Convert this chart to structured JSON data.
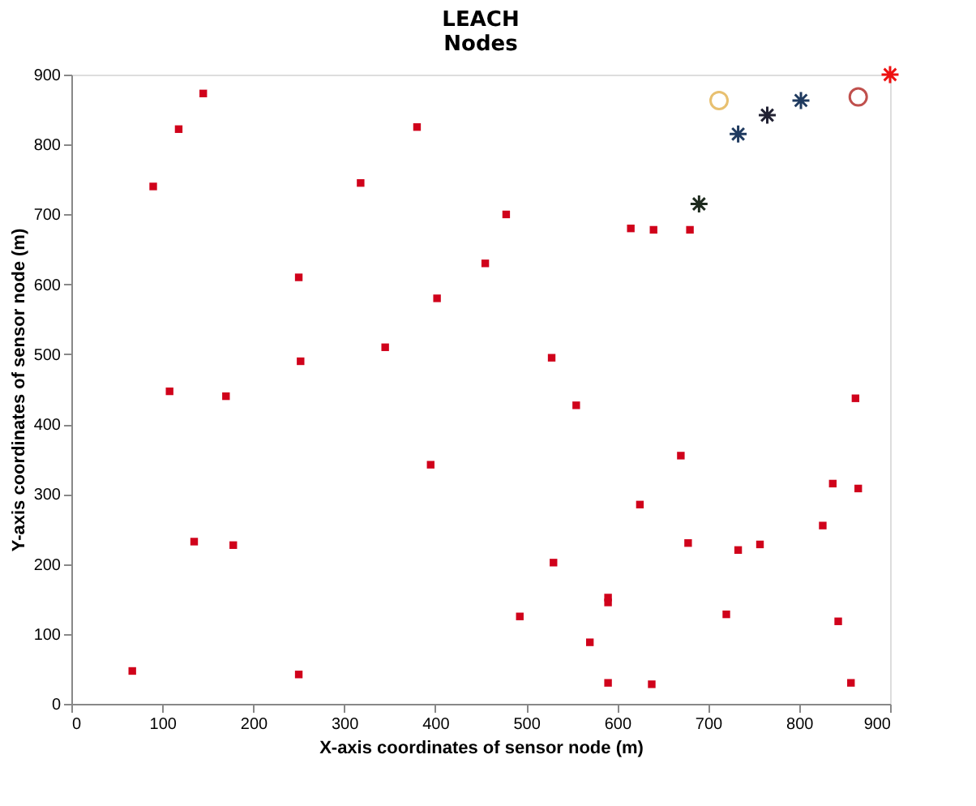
{
  "chart_data": {
    "type": "scatter",
    "title": "LEACH",
    "subtitle": "Nodes",
    "xlabel": "X-axis coordinates of sensor node (m)",
    "ylabel": "Y-axis coordinates of sensor node (m)",
    "xlim": [
      0,
      900
    ],
    "ylim": [
      0,
      900
    ],
    "xticks": [
      0,
      100,
      200,
      300,
      400,
      500,
      600,
      700,
      800,
      900
    ],
    "yticks": [
      0,
      100,
      200,
      300,
      400,
      500,
      600,
      700,
      800,
      900
    ],
    "grid": false,
    "series": [
      {
        "marker": "square",
        "color": "#d0021b",
        "x": [
          67,
          90,
          108,
          118,
          135,
          145,
          170,
          178,
          250,
          252,
          250,
          318,
          345,
          380,
          395,
          402,
          455,
          478,
          493,
          528,
          530,
          555,
          570,
          590,
          590,
          590,
          615,
          625,
          638,
          640,
          670,
          678,
          680,
          720,
          733,
          757,
          826,
          837,
          843,
          857,
          862,
          865
        ],
        "values": [
          47,
          740,
          447,
          822,
          232,
          873,
          440,
          227,
          610,
          490,
          42,
          745,
          510,
          825,
          342,
          580,
          630,
          700,
          125,
          495,
          202,
          427,
          88,
          30,
          145,
          152,
          680,
          285,
          28,
          678,
          355,
          230,
          678,
          128,
          220,
          228,
          255,
          315,
          118,
          30,
          437,
          308
        ]
      },
      {
        "marker": "cross",
        "colors": [
          "#1e2a1e",
          "#1f3a5f",
          "#222233",
          "#1f3a5f"
        ],
        "x": [
          690,
          733,
          765,
          802
        ],
        "values": [
          715,
          815,
          842,
          863
        ]
      },
      {
        "marker": "circle",
        "colors": [
          "#e8c070",
          "#c0504d"
        ],
        "x": [
          712,
          865
        ],
        "values": [
          863,
          868
        ]
      },
      {
        "marker": "cross",
        "color": "#ee1111",
        "x": [
          900
        ],
        "values": [
          900
        ]
      }
    ]
  }
}
